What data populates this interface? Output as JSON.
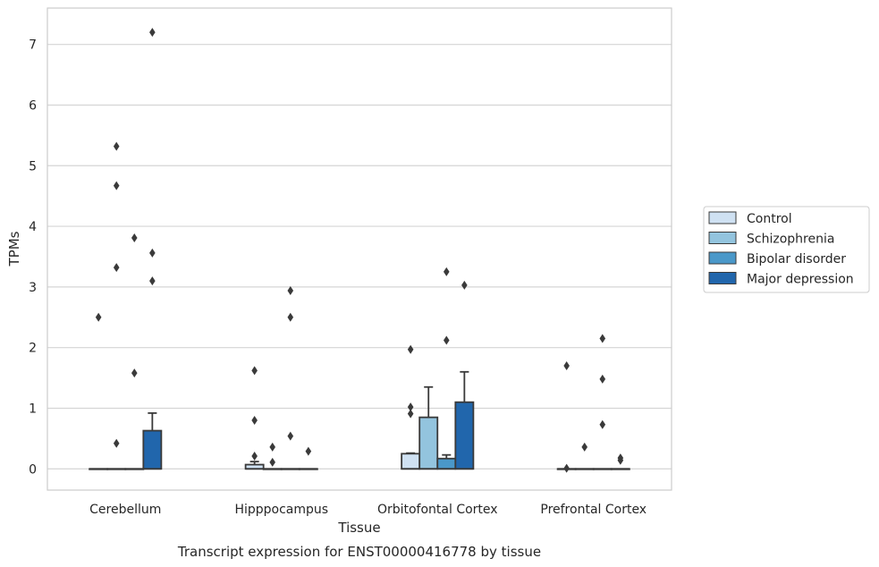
{
  "caption": "Transcript expression for ENST00000416778 by tissue",
  "chart_data": {
    "type": "box",
    "xlabel": "Tissue",
    "ylabel": "TPMs",
    "ylim": [
      -0.35,
      7.6
    ],
    "yticks": [
      0,
      1,
      2,
      3,
      4,
      5,
      6,
      7
    ],
    "grid": true,
    "legend_position": "right",
    "categories": [
      "Cerebellum",
      "Hipppocampus",
      "Orbitofontal Cortex",
      "Prefrontal Cortex"
    ],
    "series": [
      {
        "name": "Control",
        "color": "#cfe1f2",
        "boxes": [
          {
            "q1": 0,
            "median": 0,
            "q3": 0,
            "whisker_low": 0,
            "whisker_high": 0,
            "outliers": [
              2.5
            ]
          },
          {
            "q1": 0,
            "median": 0,
            "q3": 0.07,
            "whisker_low": 0,
            "whisker_high": 0.12,
            "outliers": [
              1.62,
              0.8,
              0.21
            ]
          },
          {
            "q1": 0,
            "median": 0,
            "q3": 0.25,
            "whisker_low": 0,
            "whisker_high": 0.26,
            "outliers": [
              1.97,
              1.02,
              0.91
            ]
          },
          {
            "q1": 0,
            "median": 0,
            "q3": 0,
            "whisker_low": 0,
            "whisker_high": 0,
            "outliers": [
              1.7,
              0.01
            ]
          }
        ]
      },
      {
        "name": "Schizophrenia",
        "color": "#93c4de",
        "boxes": [
          {
            "q1": 0,
            "median": 0,
            "q3": 0,
            "whisker_low": 0,
            "whisker_high": 0,
            "outliers": [
              5.32,
              4.67,
              3.32,
              0.42
            ]
          },
          {
            "q1": 0,
            "median": 0,
            "q3": 0,
            "whisker_low": 0,
            "whisker_high": 0,
            "outliers": [
              0.36,
              0.11
            ]
          },
          {
            "q1": 0,
            "median": 0,
            "q3": 0.85,
            "whisker_low": 0,
            "whisker_high": 1.35,
            "outliers": []
          },
          {
            "q1": 0,
            "median": 0,
            "q3": 0,
            "whisker_low": 0,
            "whisker_high": 0,
            "outliers": [
              0.36
            ]
          }
        ]
      },
      {
        "name": "Bipolar disorder",
        "color": "#4a98c9",
        "boxes": [
          {
            "q1": 0,
            "median": 0,
            "q3": 0,
            "whisker_low": 0,
            "whisker_high": 0,
            "outliers": [
              3.81,
              1.58
            ]
          },
          {
            "q1": 0,
            "median": 0,
            "q3": 0,
            "whisker_low": 0,
            "whisker_high": 0,
            "outliers": [
              2.94,
              2.5,
              0.54
            ]
          },
          {
            "q1": 0,
            "median": 0,
            "q3": 0.17,
            "whisker_low": 0,
            "whisker_high": 0.23,
            "outliers": [
              3.25,
              2.12
            ]
          },
          {
            "q1": 0,
            "median": 0,
            "q3": 0,
            "whisker_low": 0,
            "whisker_high": 0,
            "outliers": [
              2.15,
              1.48,
              0.73
            ]
          }
        ]
      },
      {
        "name": "Major depression",
        "color": "#2166ac",
        "boxes": [
          {
            "q1": 0,
            "median": 0,
            "q3": 0.63,
            "whisker_low": 0,
            "whisker_high": 0.92,
            "outliers": [
              7.2,
              3.56,
              3.1
            ]
          },
          {
            "q1": 0,
            "median": 0,
            "q3": 0,
            "whisker_low": 0,
            "whisker_high": 0,
            "outliers": [
              0.29
            ]
          },
          {
            "q1": 0,
            "median": 0,
            "q3": 1.1,
            "whisker_low": 0,
            "whisker_high": 1.6,
            "outliers": [
              3.03
            ]
          },
          {
            "q1": 0,
            "median": 0,
            "q3": 0,
            "whisker_low": 0,
            "whisker_high": 0,
            "outliers": [
              0.18,
              0.14
            ]
          }
        ]
      }
    ]
  }
}
